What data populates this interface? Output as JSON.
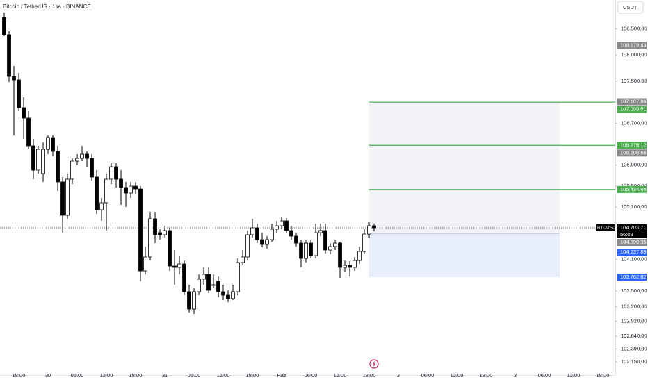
{
  "chart_data": {
    "type": "candlestick",
    "title": "Bitcoin / TetherUS · 1sa · BINANCE",
    "currency": "USDT",
    "symbol": "BTCUSDT",
    "countdown": "56:03",
    "bull_color": "#ffffff",
    "bear_color": "#000000",
    "open": [
      108717,
      108386,
      107591,
      107525,
      106995,
      106796,
      106267,
      105803,
      105737,
      106200,
      106425,
      106161,
      105578,
      104942,
      105631,
      105975,
      106028,
      106108,
      106028,
      105671,
      105048,
      105180,
      105631,
      105869,
      105631,
      105472,
      105366,
      105498,
      105445,
      103882,
      104147,
      104876,
      104611,
      104571,
      104651,
      103975,
      103949,
      104015,
      103485,
      103154,
      103485,
      103724,
      103816,
      103618,
      103684,
      103485,
      103419,
      103353,
      103485,
      104042,
      104147,
      104571,
      104704,
      104478,
      104386,
      104478,
      104677,
      104743,
      104836,
      104651,
      104545,
      104412,
      104121,
      104412,
      104174,
      104611,
      104651,
      104280,
      104346,
      104412,
      103949,
      103988,
      103949,
      104081,
      104253,
      104584,
      104743
    ],
    "high": [
      108810,
      108452,
      107790,
      107657,
      107194,
      106929,
      106399,
      106267,
      106333,
      106465,
      106465,
      106267,
      105671,
      105737,
      106028,
      106108,
      106267,
      106161,
      106108,
      105803,
      105273,
      105737,
      105935,
      105935,
      105803,
      105578,
      105578,
      105578,
      105498,
      104346,
      105008,
      105008,
      104677,
      104743,
      104704,
      104280,
      104174,
      104081,
      103618,
      103551,
      103816,
      103949,
      103949,
      103816,
      103776,
      103618,
      103512,
      103618,
      104121,
      104280,
      104651,
      104876,
      104783,
      104611,
      104545,
      104783,
      104836,
      104916,
      104889,
      104743,
      104611,
      104478,
      104478,
      104478,
      104783,
      104783,
      104783,
      104412,
      104478,
      104439,
      104081,
      104068,
      104147,
      104346,
      104677,
      104810,
      104783
    ],
    "low": [
      108359,
      107485,
      106465,
      106929,
      106399,
      106200,
      105631,
      105737,
      105578,
      106108,
      106068,
      105406,
      104611,
      104876,
      105538,
      105896,
      105975,
      105869,
      105604,
      104969,
      104836,
      104651,
      105538,
      105472,
      105141,
      105101,
      105273,
      105339,
      103684,
      103816,
      104081,
      104412,
      104478,
      104518,
      103882,
      103618,
      103816,
      103419,
      103088,
      103061,
      103419,
      103618,
      103459,
      103551,
      103379,
      103326,
      103287,
      103326,
      103419,
      103988,
      104081,
      104518,
      104412,
      104333,
      104306,
      104439,
      104598,
      104677,
      104598,
      104478,
      104346,
      103949,
      104042,
      104121,
      104121,
      104545,
      104214,
      104200,
      104280,
      103750,
      103856,
      103776,
      103882,
      104015,
      104200,
      104518,
      104637
    ],
    "close": [
      108386,
      107591,
      107525,
      106995,
      106796,
      106267,
      105803,
      106200,
      106200,
      106425,
      106161,
      105578,
      104942,
      105631,
      105975,
      106028,
      106108,
      106028,
      105671,
      105048,
      105180,
      105631,
      105869,
      105631,
      105472,
      105366,
      105498,
      105445,
      103882,
      104147,
      104876,
      104571,
      104571,
      104651,
      103975,
      103949,
      104015,
      103485,
      103154,
      103485,
      103724,
      103816,
      103512,
      103618,
      103485,
      103419,
      103353,
      103485,
      104042,
      104147,
      104571,
      104704,
      104478,
      104386,
      104478,
      104677,
      104743,
      104836,
      104651,
      104545,
      104412,
      104121,
      104412,
      104174,
      104611,
      104651,
      104280,
      104346,
      104412,
      103949,
      103988,
      103949,
      104081,
      104253,
      104584,
      104743,
      104703.71
    ],
    "xlim": [
      -0.86,
      125.57
    ],
    "xticks": [
      {
        "value": 3,
        "label": "18:00"
      },
      {
        "value": 9,
        "label": "30"
      },
      {
        "value": 15,
        "label": "06:00"
      },
      {
        "value": 21,
        "label": "12:00"
      },
      {
        "value": 27,
        "label": "18:00"
      },
      {
        "value": 33,
        "label": "31"
      },
      {
        "value": 39,
        "label": "06:00"
      },
      {
        "value": 45,
        "label": "12:00"
      },
      {
        "value": 51,
        "label": "18:00"
      },
      {
        "value": 57,
        "label": "Haz"
      },
      {
        "value": 63,
        "label": "06:00"
      },
      {
        "value": 69,
        "label": "12:00"
      },
      {
        "value": 75,
        "label": "18:00"
      },
      {
        "value": 81,
        "label": "2"
      },
      {
        "value": 87,
        "label": "06:00"
      },
      {
        "value": 93,
        "label": "12:00"
      },
      {
        "value": 99,
        "label": "18:00"
      },
      {
        "value": 105,
        "label": "3"
      },
      {
        "value": 111,
        "label": "06:00"
      },
      {
        "value": 117,
        "label": "12:00"
      },
      {
        "value": 123,
        "label": "18:00"
      }
    ],
    "ylim": [
      101896,
      109048
    ],
    "yticks": [
      {
        "value": 108500,
        "label": "108.500,00"
      },
      {
        "value": 108000,
        "label": "108.000,00"
      },
      {
        "value": 107500,
        "label": "107.500,00"
      },
      {
        "value": 106700,
        "label": "106.700,00"
      },
      {
        "value": 105900,
        "label": "105.900,00"
      },
      {
        "value": 105500,
        "label": "105.500,00"
      },
      {
        "value": 105100,
        "label": "105.100,00"
      },
      {
        "value": 104100,
        "label": "104.100,00"
      },
      {
        "value": 103500,
        "label": "103.500,00"
      },
      {
        "value": 103200,
        "label": "103.200,00"
      },
      {
        "value": 102920,
        "label": "102.920,00"
      },
      {
        "value": 102640,
        "label": "102.640,00"
      },
      {
        "value": 102390,
        "label": "102.390,00"
      },
      {
        "value": 102150,
        "label": "102.150,00"
      }
    ],
    "last_price": {
      "value": 104703.71,
      "label": "104.703,71"
    },
    "targets": [
      {
        "value": 107099.51,
        "label": "107.099,51"
      },
      {
        "value": 106276.12,
        "label": "106.276,12"
      },
      {
        "value": 105434.4,
        "label": "105.434,40"
      }
    ],
    "target_color": "#4caf50",
    "entry": {
      "value": 104599.35,
      "label": "104.599,35"
    },
    "stops": [
      {
        "value": 104237.89,
        "label": "104.237,89"
      },
      {
        "value": 103762.82,
        "label": "103.762,82"
      }
    ],
    "stop_color": "#2962ff",
    "markers": [
      {
        "value": 108179.43,
        "label": "108.179,43"
      },
      {
        "value": 107107.86,
        "label": "107.107,86"
      },
      {
        "value": 106208.66,
        "label": "106.208,66"
      }
    ],
    "marker_color": "#8a8a8a"
  }
}
